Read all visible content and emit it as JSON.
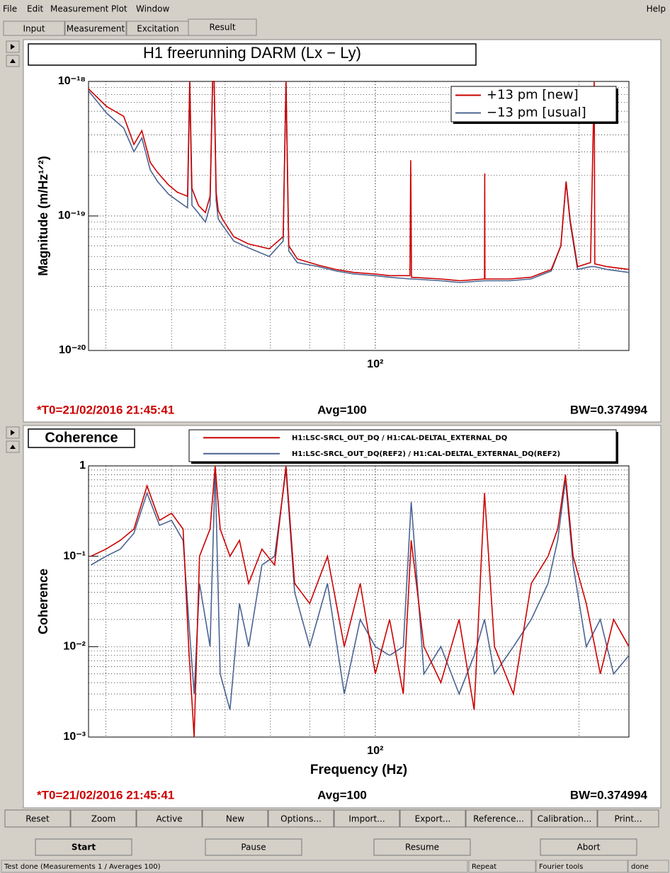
{
  "menu": [
    "File",
    "Edit",
    "Measurement",
    "Plot",
    "Window"
  ],
  "help": "Help",
  "tabs": [
    "Input",
    "Measurement",
    "Excitation",
    "Result"
  ],
  "chart_data": [
    {
      "type": "line",
      "title": "H1 freerunning DARM (Lx − Ly)",
      "y_label": "Magnitude (m/Hz¹ᐟ²)",
      "log_x": true,
      "log_y": true,
      "grid": true,
      "legend": "upper right",
      "xlim": [
        37.7,
        237
      ],
      "ylim": [
        1e-20,
        1e-18
      ],
      "xticks": [
        {
          "value": 100,
          "label": "10²"
        }
      ],
      "yticks": [
        {
          "value": 1e-18,
          "label": "10⁻¹⁸"
        },
        {
          "value": 1e-19,
          "label": "10⁻¹⁹"
        },
        {
          "value": 1e-20,
          "label": "10⁻²⁰"
        }
      ],
      "x": [
        37.7,
        40.1,
        42.5,
        44,
        45.2,
        46.5,
        47.7,
        49.5,
        51,
        52.8,
        53.2,
        53.6,
        54.8,
        56.1,
        57,
        57.5,
        57.8,
        58.2,
        58.6,
        59.5,
        61.8,
        64.9,
        69.7,
        73.1,
        73.8,
        74.5,
        76.7,
        82.5,
        87.5,
        93,
        100,
        105,
        112.5,
        112.8,
        113.1,
        125,
        133.5,
        145,
        145.1,
        145.2,
        158,
        169.8,
        182,
        188,
        191.4,
        194,
        199,
        208,
        210.6,
        211,
        220,
        237
      ],
      "series": [
        {
          "name": "−13 pm [usual]",
          "color": "#4a6491",
          "values": [
            8.5e-19,
            5.8e-19,
            4.5e-19,
            3e-19,
            3.8e-19,
            2.2e-19,
            1.8e-19,
            1.45e-19,
            1.3e-19,
            1.15e-19,
            1e-18,
            1.2e-19,
            1.05e-19,
            9e-20,
            1.2e-19,
            1e-18,
            1e-18,
            1.3e-19,
            9.5e-20,
            8.5e-20,
            6.5e-20,
            5.8e-20,
            5e-20,
            6.5e-20,
            1e-18,
            5.5e-20,
            4.5e-20,
            4.2e-20,
            3.9e-20,
            3.7e-20,
            3.6e-20,
            3.5e-20,
            3.4e-20,
            3.4e-20,
            3.4e-20,
            3.3e-20,
            3.2e-20,
            3.3e-20,
            3.3e-20,
            3.3e-20,
            3.3e-20,
            3.4e-20,
            3.9e-20,
            6e-20,
            1.8e-19,
            9e-20,
            4e-20,
            4.2e-20,
            4.2e-20,
            4.2e-20,
            4e-20,
            3.8e-20
          ]
        },
        {
          "name": "+13 pm [new]",
          "color": "#cc0000",
          "values": [
            8.8e-19,
            6.5e-19,
            5.5e-19,
            3.4e-19,
            4.3e-19,
            2.5e-19,
            2.1e-19,
            1.7e-19,
            1.5e-19,
            1.4e-19,
            1e-18,
            1.6e-19,
            1.2e-19,
            1.06e-19,
            1.4e-19,
            1e-18,
            1e-18,
            1.5e-19,
            1.1e-19,
            9.4e-20,
            7e-20,
            6.2e-20,
            5.7e-20,
            7e-20,
            1e-18,
            6e-20,
            4.8e-20,
            4.3e-20,
            4e-20,
            3.8e-20,
            3.7e-20,
            3.6e-20,
            3.6e-20,
            2.6e-19,
            3.5e-20,
            3.4e-20,
            3.3e-20,
            3.4e-20,
            2.07e-19,
            3.4e-20,
            3.4e-20,
            3.5e-20,
            4e-20,
            6e-20,
            1.8e-19,
            9.4e-20,
            4.2e-20,
            4.5e-20,
            1e-18,
            4.4e-20,
            4.2e-20,
            4e-20
          ]
        }
      ],
      "legend_order": [
        1,
        0
      ],
      "annotations": [
        "*T0=21/02/2016 21:45:41",
        "Avg=100",
        "BW=0.374994"
      ]
    },
    {
      "type": "line",
      "title": "Coherence",
      "x_label": "Frequency (Hz)",
      "y_label": "Coherence",
      "log_x": true,
      "log_y": true,
      "grid": true,
      "legend": "top",
      "xlim": [
        37.7,
        237
      ],
      "ylim": [
        0.001,
        1
      ],
      "xticks": [
        {
          "value": 100,
          "label": "10²"
        }
      ],
      "yticks": [
        1,
        {
          "value": 0.1,
          "label": "10⁻¹"
        },
        {
          "value": 0.01,
          "label": "10⁻²"
        },
        {
          "value": 0.001,
          "label": "10⁻³"
        }
      ],
      "x": [
        38,
        40,
        42,
        44,
        46,
        48,
        50,
        52,
        53,
        54,
        55,
        57,
        58,
        59,
        61,
        63,
        65,
        68,
        71,
        73.8,
        76,
        80,
        85,
        90,
        95,
        100,
        105,
        110,
        113,
        118,
        125,
        133,
        140,
        145,
        150,
        160,
        170,
        180,
        186,
        191,
        196,
        205,
        215,
        225,
        237
      ],
      "series": [
        {
          "name": "H1:LSC-SRCL_OUT_DQ(REF2) / H1:CAL-DELTAL_EXTERNAL_DQ(REF2)",
          "color": "#4a6491",
          "values": [
            0.08,
            0.1,
            0.12,
            0.18,
            0.5,
            0.22,
            0.25,
            0.15,
            0.02,
            0.003,
            0.05,
            0.01,
            0.9,
            0.005,
            0.002,
            0.03,
            0.01,
            0.08,
            0.1,
            0.9,
            0.04,
            0.01,
            0.05,
            0.003,
            0.02,
            0.01,
            0.008,
            0.01,
            0.4,
            0.005,
            0.01,
            0.003,
            0.008,
            0.02,
            0.005,
            0.01,
            0.02,
            0.05,
            0.15,
            0.7,
            0.08,
            0.01,
            0.02,
            0.005,
            0.008
          ]
        },
        {
          "name": "H1:LSC-SRCL_OUT_DQ / H1:CAL-DELTAL_EXTERNAL_DQ",
          "color": "#cc0000",
          "values": [
            0.1,
            0.12,
            0.15,
            0.2,
            0.6,
            0.25,
            0.3,
            0.2,
            0.01,
            0.001,
            0.1,
            0.2,
            1,
            0.2,
            0.1,
            0.15,
            0.05,
            0.12,
            0.08,
            1,
            0.05,
            0.03,
            0.1,
            0.01,
            0.05,
            0.005,
            0.02,
            0.003,
            0.15,
            0.01,
            0.004,
            0.02,
            0.002,
            0.5,
            0.01,
            0.003,
            0.05,
            0.1,
            0.2,
            0.8,
            0.1,
            0.03,
            0.005,
            0.02,
            0.01
          ]
        }
      ],
      "legend_order": [
        1,
        0
      ],
      "annotations": [
        "*T0=21/02/2016 21:45:41",
        "Avg=100",
        "BW=0.374994"
      ]
    }
  ],
  "buttons": [
    "Reset",
    "Zoom",
    "Active",
    "New",
    "Options...",
    "Import...",
    "Export...",
    "Reference...",
    "Calibration...",
    "Print..."
  ],
  "controls": [
    "Start",
    "Pause",
    "Resume",
    "Abort"
  ],
  "status": [
    "Test done (Measurements 1 / Averages 100)",
    "Repeat",
    "Fourier tools",
    "done"
  ]
}
